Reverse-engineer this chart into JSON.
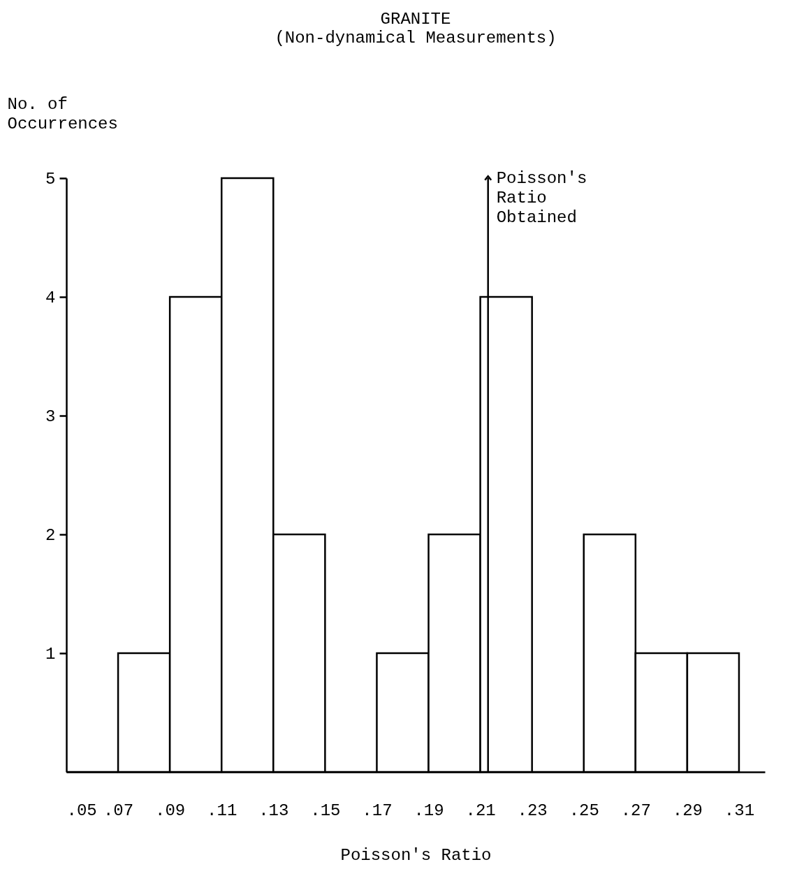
{
  "chart_data": {
    "type": "histogram",
    "title": "GRANITE",
    "subtitle": "(Non-dynamical Measurements)",
    "xlabel": "Poisson's Ratio",
    "ylabel": "No. of\nOccurrences",
    "bins": [
      0.05,
      0.07,
      0.09,
      0.11,
      0.13,
      0.15,
      0.17,
      0.19,
      0.21,
      0.23,
      0.25,
      0.27,
      0.29,
      0.31
    ],
    "values": [
      0,
      1,
      4,
      5,
      2,
      0,
      1,
      2,
      4,
      0,
      2,
      1,
      1
    ],
    "color": "#000000",
    "xlim": [
      0.05,
      0.32
    ],
    "ylim": [
      0,
      5
    ],
    "xticks": [
      {
        "value": 0.05,
        "label": ".05"
      },
      {
        "value": 0.07,
        "label": ".07"
      },
      {
        "value": 0.09,
        "label": ".09"
      },
      {
        "value": 0.11,
        "label": ".11"
      },
      {
        "value": 0.13,
        "label": ".13"
      },
      {
        "value": 0.15,
        "label": ".15"
      },
      {
        "value": 0.17,
        "label": ".17"
      },
      {
        "value": 0.19,
        "label": ".19"
      },
      {
        "value": 0.21,
        "label": ".21"
      },
      {
        "value": 0.23,
        "label": ".23"
      },
      {
        "value": 0.25,
        "label": ".25"
      },
      {
        "value": 0.27,
        "label": ".27"
      },
      {
        "value": 0.29,
        "label": ".29"
      },
      {
        "value": 0.31,
        "label": ".31"
      }
    ],
    "yticks": [
      1,
      2,
      3,
      4,
      5
    ],
    "ref_lines": [
      {
        "axis": "x",
        "value": 0.213,
        "label": "Poisson's\nRatio\nObtained"
      }
    ],
    "grid": false
  }
}
